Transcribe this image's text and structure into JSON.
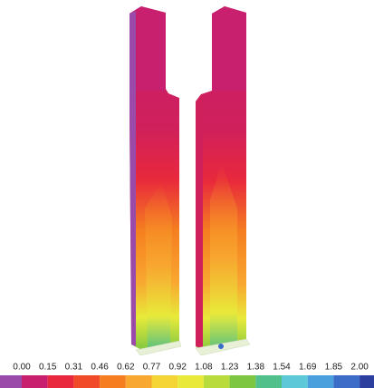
{
  "legend": {
    "labels": [
      "0.00",
      "0.15",
      "0.31",
      "0.46",
      "0.62",
      "0.77",
      "0.92",
      "1.08",
      "1.23",
      "1.38",
      "1.54",
      "1.69",
      "1.85",
      "2.00"
    ],
    "colors": [
      "#9a4aa8",
      "#c8206e",
      "#e8283c",
      "#f04a28",
      "#f57f20",
      "#f8a830",
      "#f5d534",
      "#e8ea3a",
      "#b8dc3c",
      "#7cc642",
      "#52c08a",
      "#5cc8d8",
      "#4aa0dc",
      "#3a6cc8",
      "#2c3f9e"
    ]
  }
}
